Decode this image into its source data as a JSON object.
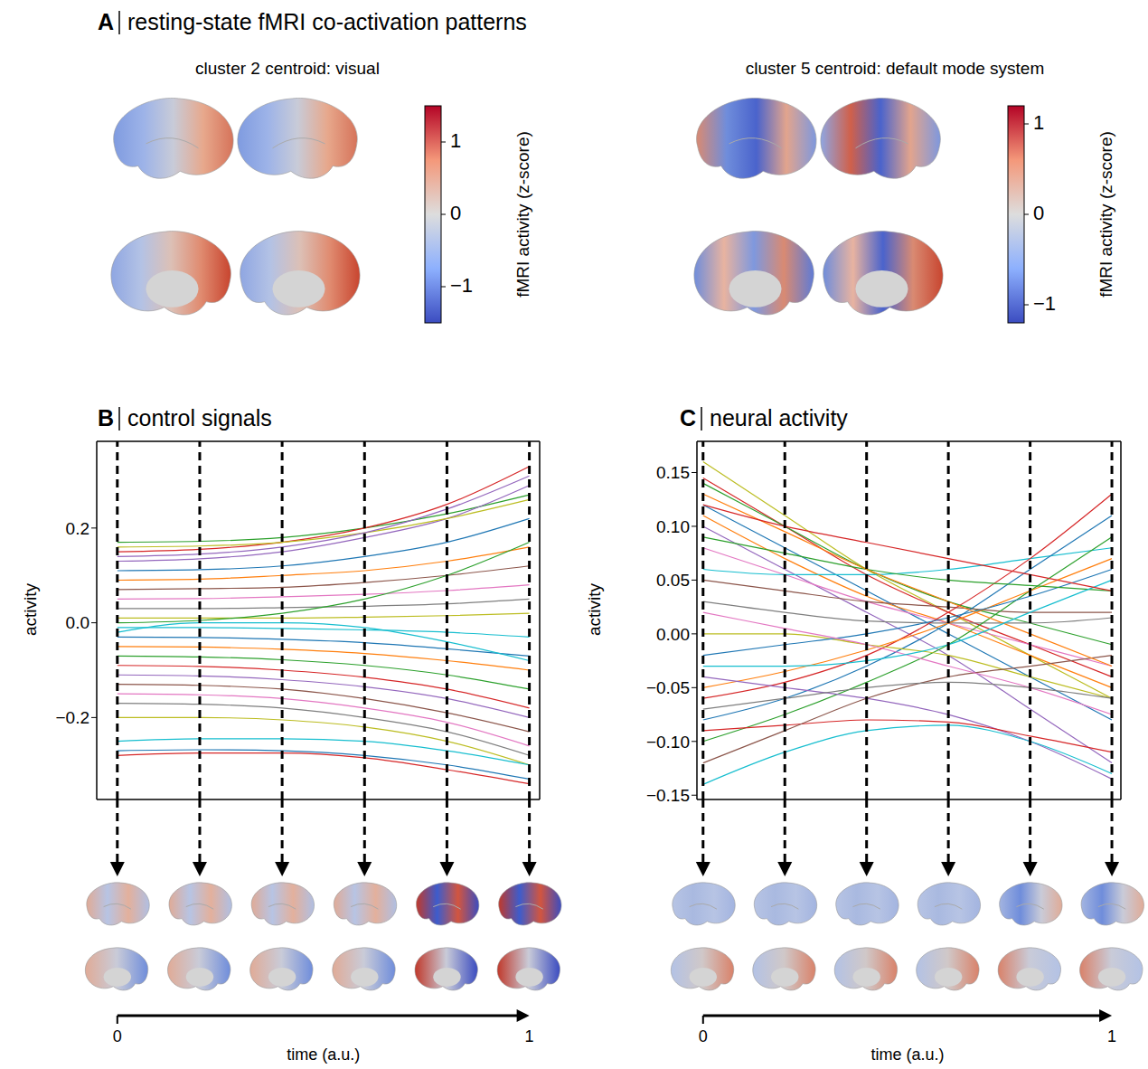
{
  "chart_data": [
    {
      "type": "surface_map",
      "panel": "A",
      "title": "resting-state fMRI co-activation patterns",
      "maps": [
        {
          "title": "cluster 2 centroid: visual",
          "colorbar": {
            "label": "fMRI activity (z-score)",
            "range": [
              -1.5,
              1.5
            ],
            "ticks": [
              1,
              0,
              {
                "value": -1,
                "label": "−1"
              }
            ]
          }
        },
        {
          "title": "cluster 5 centroid: default mode system",
          "colorbar": {
            "label": "fMRI activity (z-score)",
            "range": [
              -1.2,
              1.2
            ],
            "ticks": [
              1,
              0,
              {
                "value": -1,
                "label": "−1"
              }
            ]
          }
        }
      ]
    },
    {
      "type": "line",
      "panel": "B",
      "title": "control signals",
      "ylabel": "activity",
      "tick_labels": "y",
      "xlim": [
        -0.05,
        1.025
      ],
      "ylim": [
        -0.373,
        0.383
      ],
      "yticks": [
        {
          "value": -0.2,
          "label": "−0.2"
        },
        {
          "value": 0,
          "label": "0.0"
        },
        0.2
      ],
      "snapshot_times": [
        0,
        0.2,
        0.4,
        0.6,
        0.8,
        1
      ],
      "time_axis": {
        "label": "time (a.u.)",
        "ticks": [
          0,
          1
        ]
      },
      "x": [
        0,
        0.2,
        0.4,
        0.6,
        0.8,
        1
      ],
      "series": [
        {
          "color": "#2ca02c",
          "values": [
            0.17,
            0.172,
            0.18,
            0.2,
            0.23,
            0.27
          ]
        },
        {
          "color": "#d62728",
          "values": [
            0.15,
            0.155,
            0.17,
            0.2,
            0.25,
            0.33
          ]
        },
        {
          "color": "#9467bd",
          "values": [
            0.13,
            0.135,
            0.15,
            0.18,
            0.22,
            0.29
          ]
        },
        {
          "color": "#1f77b4",
          "values": [
            0.11,
            0.112,
            0.12,
            0.14,
            0.17,
            0.22
          ]
        },
        {
          "color": "#ff7f0e",
          "values": [
            0.09,
            0.092,
            0.1,
            0.11,
            0.13,
            0.16
          ]
        },
        {
          "color": "#8c564b",
          "values": [
            0.07,
            0.072,
            0.075,
            0.085,
            0.1,
            0.12
          ]
        },
        {
          "color": "#e377c2",
          "values": [
            0.05,
            0.051,
            0.055,
            0.06,
            0.068,
            0.08
          ]
        },
        {
          "color": "#7f7f7f",
          "values": [
            0.03,
            0.03,
            0.032,
            0.035,
            0.04,
            0.05
          ]
        },
        {
          "color": "#bcbd22",
          "values": [
            0.01,
            0.01,
            0.01,
            0.012,
            0.015,
            0.02
          ]
        },
        {
          "color": "#17becf",
          "values": [
            -0.01,
            -0.01,
            -0.012,
            -0.015,
            -0.02,
            -0.03
          ]
        },
        {
          "color": "#1f77b4",
          "values": [
            -0.03,
            -0.031,
            -0.035,
            -0.042,
            -0.055,
            -0.07
          ]
        },
        {
          "color": "#ff7f0e",
          "values": [
            -0.05,
            -0.051,
            -0.056,
            -0.065,
            -0.08,
            -0.1
          ]
        },
        {
          "color": "#2ca02c",
          "values": [
            -0.07,
            -0.072,
            -0.078,
            -0.09,
            -0.11,
            -0.14
          ]
        },
        {
          "color": "#d62728",
          "values": [
            -0.09,
            -0.092,
            -0.1,
            -0.115,
            -0.14,
            -0.18
          ]
        },
        {
          "color": "#9467bd",
          "values": [
            -0.11,
            -0.112,
            -0.12,
            -0.135,
            -0.16,
            -0.2
          ]
        },
        {
          "color": "#8c564b",
          "values": [
            -0.13,
            -0.132,
            -0.14,
            -0.16,
            -0.19,
            -0.23
          ]
        },
        {
          "color": "#e377c2",
          "values": [
            -0.15,
            -0.152,
            -0.16,
            -0.18,
            -0.21,
            -0.26
          ]
        },
        {
          "color": "#7f7f7f",
          "values": [
            -0.17,
            -0.172,
            -0.18,
            -0.2,
            -0.23,
            -0.28
          ]
        },
        {
          "color": "#bcbd22",
          "values": [
            -0.2,
            -0.2,
            -0.205,
            -0.22,
            -0.25,
            -0.3
          ]
        },
        {
          "color": "#17becf",
          "values": [
            -0.25,
            -0.245,
            -0.245,
            -0.25,
            -0.27,
            -0.3
          ]
        },
        {
          "color": "#1f77b4",
          "values": [
            -0.27,
            -0.268,
            -0.27,
            -0.28,
            -0.3,
            -0.33
          ]
        },
        {
          "color": "#d62728",
          "values": [
            -0.28,
            -0.275,
            -0.275,
            -0.285,
            -0.31,
            -0.34
          ]
        },
        {
          "color": "#bcbd22",
          "values": [
            0.16,
            0.162,
            0.17,
            0.19,
            0.22,
            0.26
          ]
        },
        {
          "color": "#2ca02c",
          "values": [
            0.0,
            0.005,
            0.02,
            0.05,
            0.1,
            0.17
          ]
        },
        {
          "color": "#9467bd",
          "values": [
            0.14,
            0.145,
            0.16,
            0.19,
            0.24,
            0.31
          ]
        },
        {
          "color": "#17becf",
          "values": [
            -0.02,
            0.0,
            0.0,
            -0.01,
            -0.04,
            -0.08
          ]
        }
      ]
    },
    {
      "type": "line",
      "panel": "C",
      "title": "neural activity",
      "ylabel": "activity",
      "tick_labels": "y",
      "xlim": [
        -0.015,
        1.022
      ],
      "ylim": [
        -0.154,
        0.179
      ],
      "yticks": [
        {
          "value": -0.15,
          "label": "−0.15"
        },
        {
          "value": -0.1,
          "label": "−0.10"
        },
        {
          "value": -0.05,
          "label": "−0.05"
        },
        {
          "value": 0,
          "label": "0.00"
        },
        0.05,
        {
          "value": 0.1,
          "label": "0.10"
        },
        0.15
      ],
      "snapshot_times": [
        0,
        0.2,
        0.4,
        0.6,
        0.8,
        1
      ],
      "time_axis": {
        "label": "time (a.u.)",
        "ticks": [
          0,
          1
        ]
      },
      "x": [
        0,
        0.2,
        0.4,
        0.6,
        0.8,
        1
      ],
      "series": [
        {
          "color": "#bcbd22",
          "values": [
            0.16,
            0.11,
            0.06,
            0.02,
            -0.02,
            -0.06
          ]
        },
        {
          "color": "#d62728",
          "values": [
            0.145,
            0.1,
            0.055,
            0.02,
            -0.01,
            -0.04
          ]
        },
        {
          "color": "#2ca02c",
          "values": [
            0.14,
            0.1,
            0.06,
            0.03,
            0.01,
            -0.01
          ]
        },
        {
          "color": "#1f77b4",
          "values": [
            0.12,
            0.08,
            0.04,
            0.0,
            -0.04,
            -0.08
          ]
        },
        {
          "color": "#ff7f0e",
          "values": [
            0.11,
            0.07,
            0.035,
            0.01,
            -0.02,
            -0.05
          ]
        },
        {
          "color": "#9467bd",
          "values": [
            0.1,
            0.06,
            0.02,
            -0.02,
            -0.07,
            -0.12
          ]
        },
        {
          "color": "#e377c2",
          "values": [
            0.08,
            0.055,
            0.03,
            0.01,
            -0.01,
            -0.03
          ]
        },
        {
          "color": "#17becf",
          "values": [
            0.06,
            0.055,
            0.055,
            0.06,
            0.07,
            0.08
          ]
        },
        {
          "color": "#8c564b",
          "values": [
            0.05,
            0.04,
            0.03,
            0.025,
            0.02,
            0.02
          ]
        },
        {
          "color": "#7f7f7f",
          "values": [
            0.03,
            0.02,
            0.012,
            0.01,
            0.01,
            0.015
          ]
        },
        {
          "color": "#d62728",
          "values": [
            -0.06,
            -0.045,
            -0.02,
            0.02,
            0.07,
            0.13
          ]
        },
        {
          "color": "#1f77b4",
          "values": [
            -0.08,
            -0.06,
            -0.03,
            0.01,
            0.06,
            0.11
          ]
        },
        {
          "color": "#2ca02c",
          "values": [
            -0.1,
            -0.075,
            -0.045,
            -0.01,
            0.04,
            0.09
          ]
        },
        {
          "color": "#ff7f0e",
          "values": [
            -0.05,
            -0.035,
            -0.015,
            0.01,
            0.04,
            0.07
          ]
        },
        {
          "color": "#9467bd",
          "values": [
            -0.04,
            -0.05,
            -0.06,
            -0.075,
            -0.1,
            -0.135
          ]
        },
        {
          "color": "#17becf",
          "values": [
            -0.14,
            -0.11,
            -0.09,
            -0.085,
            -0.1,
            -0.13
          ]
        },
        {
          "color": "#d62728",
          "values": [
            -0.09,
            -0.085,
            -0.08,
            -0.082,
            -0.095,
            -0.11
          ]
        },
        {
          "color": "#bcbd22",
          "values": [
            0.0,
            0.0,
            -0.01,
            -0.02,
            -0.04,
            -0.06
          ]
        },
        {
          "color": "#1f77b4",
          "values": [
            -0.02,
            -0.01,
            0.0,
            0.015,
            0.035,
            0.06
          ]
        },
        {
          "color": "#8c564b",
          "values": [
            -0.12,
            -0.09,
            -0.06,
            -0.04,
            -0.03,
            -0.02
          ]
        },
        {
          "color": "#e377c2",
          "values": [
            0.02,
            0.005,
            -0.01,
            -0.03,
            -0.05,
            -0.075
          ]
        },
        {
          "color": "#7f7f7f",
          "values": [
            -0.07,
            -0.06,
            -0.05,
            -0.045,
            -0.05,
            -0.06
          ]
        },
        {
          "color": "#2ca02c",
          "values": [
            0.09,
            0.075,
            0.06,
            0.05,
            0.045,
            0.04
          ]
        },
        {
          "color": "#ff7f0e",
          "values": [
            0.13,
            0.095,
            0.06,
            0.03,
            0.0,
            -0.03
          ]
        },
        {
          "color": "#17becf",
          "values": [
            -0.03,
            -0.03,
            -0.025,
            -0.01,
            0.02,
            0.05
          ]
        },
        {
          "color": "#d62728",
          "values": [
            0.12,
            0.1,
            0.085,
            0.07,
            0.055,
            0.04
          ]
        }
      ]
    }
  ]
}
